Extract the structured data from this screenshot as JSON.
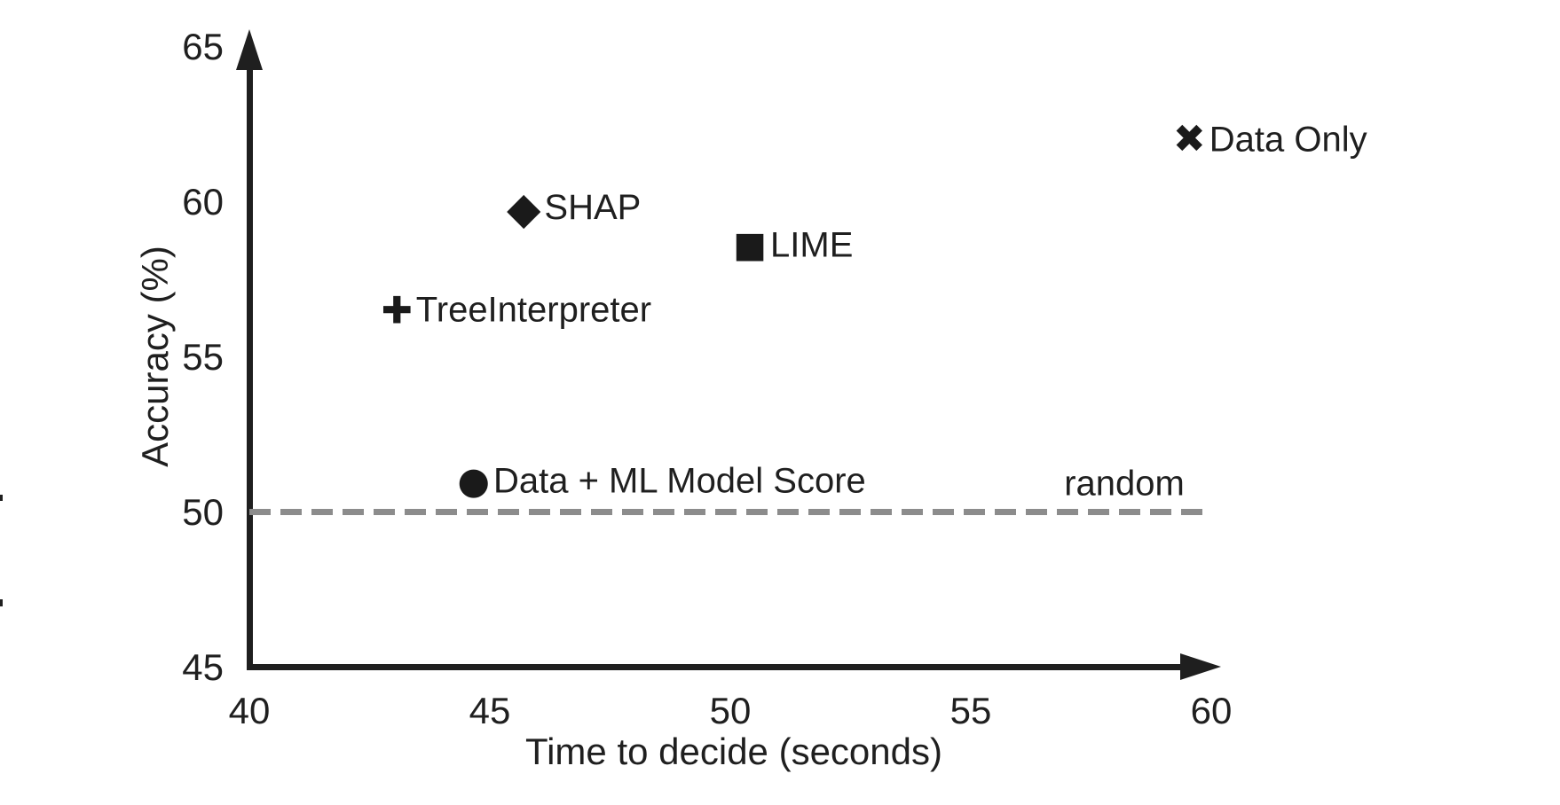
{
  "figure": {
    "background": "#ffffff",
    "text_color": "#1f1f1f",
    "axis_color": "#1f1f1f",
    "reference_line_color": "#8c8c8c"
  },
  "chart_data": {
    "type": "scatter",
    "title": "",
    "xlabel": "Time to decide (seconds)",
    "ylabel": "Accuracy (%)",
    "xlim": [
      40,
      60
    ],
    "ylim": [
      45,
      65
    ],
    "x_ticks": [
      "40",
      "45",
      "50",
      "55",
      "60"
    ],
    "y_ticks": [
      "45",
      "50",
      "55",
      "60",
      "65"
    ],
    "grid": false,
    "legend": "none (points labeled inline)",
    "points": [
      {
        "label": "Data Only",
        "x": 59.5,
        "y": 62.0,
        "marker": "x"
      },
      {
        "label": "SHAP",
        "x": 45.7,
        "y": 59.8,
        "marker": "diamond"
      },
      {
        "label": "LIME",
        "x": 50.3,
        "y": 58.6,
        "marker": "square"
      },
      {
        "label": "TreeInterpreter",
        "x": 43.0,
        "y": 56.5,
        "marker": "plus"
      },
      {
        "label": "Data + ML Model Score",
        "x": 44.6,
        "y": 51.0,
        "marker": "circle"
      }
    ],
    "reference_line": {
      "label": "random",
      "y": 50,
      "style": "dashed"
    }
  }
}
